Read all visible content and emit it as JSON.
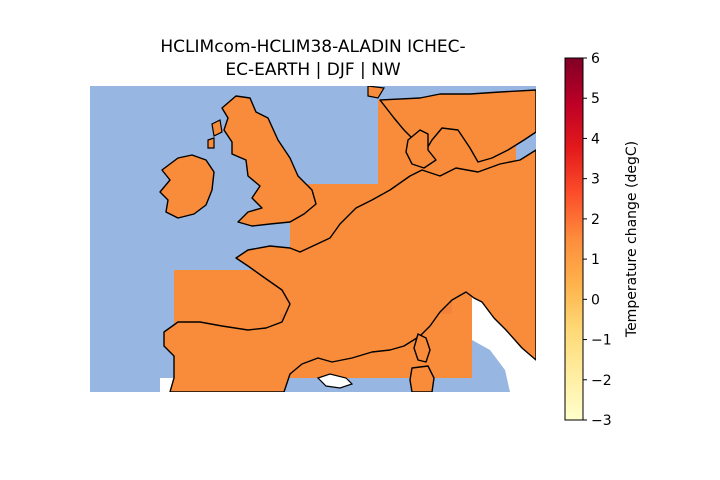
{
  "figure": {
    "title_line1": "HCLIMcom-HCLIM38-ALADIN ICHEC-",
    "title_line2": "EC-EARTH | DJF | NW"
  },
  "colors": {
    "ocean": "#98b6e2",
    "land_fill": "#f98c3b",
    "land_fill_warm": "#f4823a",
    "land_fill_light": "#fa9746",
    "coastline": "#000000"
  },
  "colorbar": {
    "label": "Temperature change (degC)",
    "min": -3,
    "max": 6,
    "ticks": [
      "6",
      "5",
      "4",
      "3",
      "2",
      "1",
      "0",
      "−1",
      "−2",
      "−3"
    ],
    "colormap": [
      "#ffffcc",
      "#ffeda0",
      "#fed976",
      "#feb24c",
      "#fd8d3c",
      "#fc4e2a",
      "#e31a1c",
      "#bd0026",
      "#800026"
    ]
  }
}
